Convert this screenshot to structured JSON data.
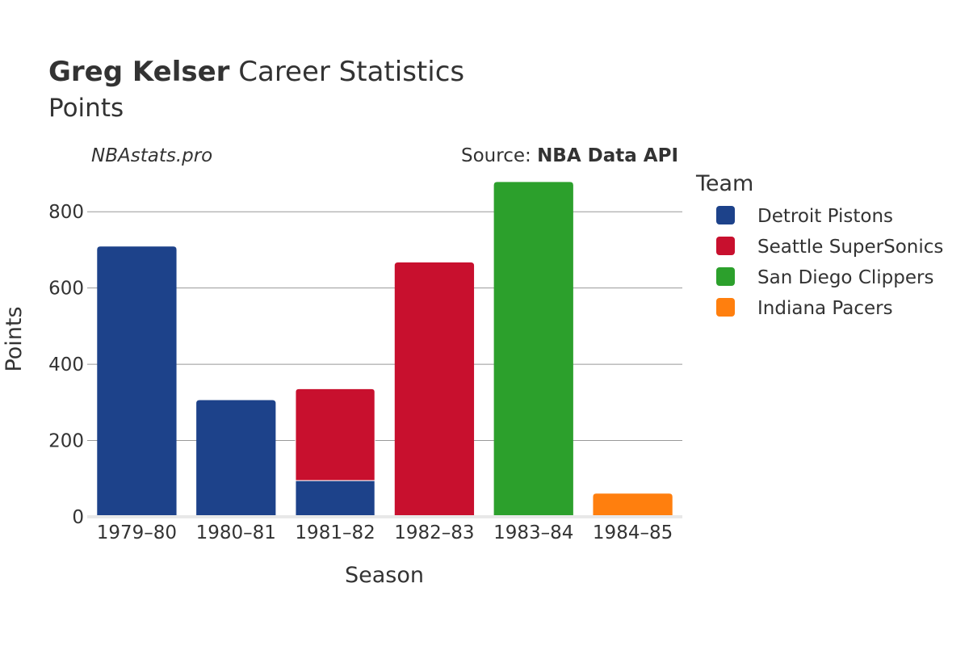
{
  "header": {
    "title_bold": "Greg Kelser",
    "title_rest": " Career Statistics",
    "subtitle": "Points"
  },
  "watermark": "NBAstats.pro",
  "source": {
    "prefix": "Source: ",
    "name": "NBA Data API"
  },
  "legend": {
    "title": "Team",
    "placement": "right"
  },
  "chart_data": {
    "type": "bar",
    "stacked": true,
    "categories": [
      "1979–80",
      "1980–81",
      "1981–82",
      "1982–83",
      "1983–84",
      "1984–85"
    ],
    "series": [
      {
        "name": "Detroit Pistons",
        "color": "#1d428a",
        "values": [
          709,
          306,
          95,
          0,
          0,
          0
        ]
      },
      {
        "name": "Seattle SuperSonics",
        "color": "#c8102e",
        "values": [
          0,
          0,
          241,
          667,
          0,
          0
        ]
      },
      {
        "name": "San Diego Clippers",
        "color": "#2ca02c",
        "values": [
          0,
          0,
          0,
          0,
          878,
          0
        ]
      },
      {
        "name": "Indiana Pacers",
        "color": "#ff7f0e",
        "values": [
          0,
          0,
          0,
          0,
          0,
          61
        ]
      }
    ],
    "xlabel": "Season",
    "ylabel": "Points",
    "ylim": [
      0,
      900
    ],
    "yticks": [
      0,
      200,
      400,
      600,
      800
    ],
    "grid": true
  }
}
